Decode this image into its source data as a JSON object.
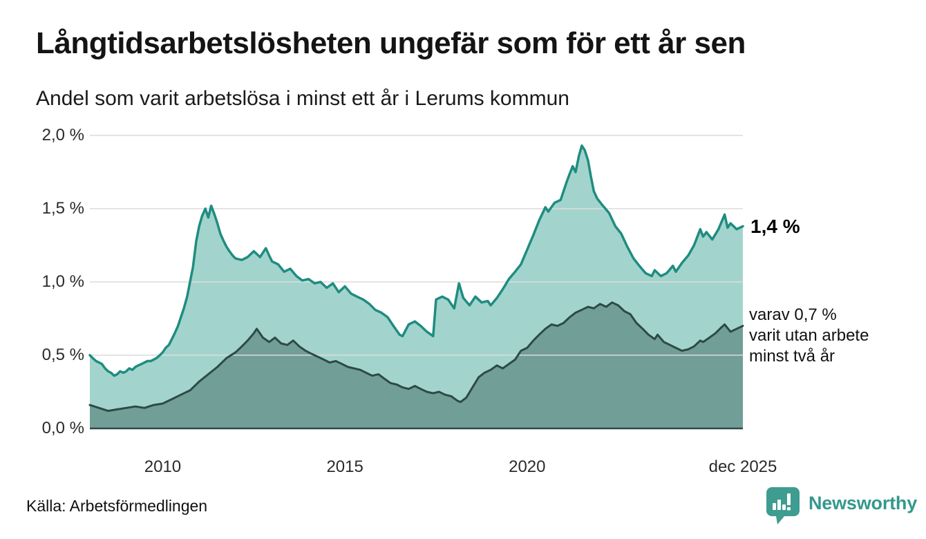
{
  "header": {
    "title": "Långtidsarbetslösheten ungefär som för ett år sen",
    "subtitle": "Andel som varit arbetslösa i minst ett år i Lerums kommun"
  },
  "annotations": {
    "latest_value": "1,4 %",
    "secondary_line1": "varav 0,7 %",
    "secondary_line2": "varit utan arbete",
    "secondary_line3": "minst två år"
  },
  "footer": {
    "source": "Källa: Arbetsförmedlingen",
    "brand": "Newsworthy"
  },
  "colors": {
    "primary_line": "#1f8c80",
    "primary_fill": "#a2d4cd",
    "secondary_line": "#2d4a45",
    "secondary_fill": "#719e97",
    "gridline": "#dcdcdc",
    "baseline": "#2d4a45",
    "brand_teal": "#3f9c90"
  },
  "chart_data": {
    "type": "area",
    "title": "Långtidsarbetslösheten ungefär som för ett år sen",
    "subtitle": "Andel som varit arbetslösa i minst ett år i Lerums kommun",
    "grid": true,
    "x_axis": {
      "start": 2008.0,
      "end": 2025.92,
      "ticks": [
        {
          "label": "2010",
          "year": 2010.0
        },
        {
          "label": "2015",
          "year": 2015.0
        },
        {
          "label": "2020",
          "year": 2020.0
        },
        {
          "label": "dec 2025",
          "year": 2025.92
        }
      ]
    },
    "y_axis": {
      "range": [
        0,
        2.0
      ],
      "unit": "%",
      "ticks": [
        {
          "label": "0,0 %",
          "value": 0.0
        },
        {
          "label": "0,5 %",
          "value": 0.5
        },
        {
          "label": "1,0 %",
          "value": 1.0
        },
        {
          "label": "1,5 %",
          "value": 1.5
        },
        {
          "label": "2,0 %",
          "value": 2.0
        }
      ]
    },
    "series": [
      {
        "name": "Andel arbetslösa minst ett år",
        "latest_label": "1,4 %",
        "latest_value": 1.38,
        "line_color": "#1f8c80",
        "fill_color": "#a2d4cd",
        "points": [
          [
            2008.0,
            0.5
          ],
          [
            2008.08,
            0.48
          ],
          [
            2008.17,
            0.46
          ],
          [
            2008.25,
            0.45
          ],
          [
            2008.33,
            0.44
          ],
          [
            2008.42,
            0.41
          ],
          [
            2008.5,
            0.39
          ],
          [
            2008.58,
            0.38
          ],
          [
            2008.67,
            0.36
          ],
          [
            2008.75,
            0.37
          ],
          [
            2008.83,
            0.39
          ],
          [
            2008.92,
            0.38
          ],
          [
            2009.0,
            0.39
          ],
          [
            2009.08,
            0.41
          ],
          [
            2009.17,
            0.4
          ],
          [
            2009.25,
            0.42
          ],
          [
            2009.33,
            0.43
          ],
          [
            2009.42,
            0.44
          ],
          [
            2009.5,
            0.45
          ],
          [
            2009.58,
            0.46
          ],
          [
            2009.67,
            0.46
          ],
          [
            2009.75,
            0.47
          ],
          [
            2009.83,
            0.48
          ],
          [
            2009.92,
            0.5
          ],
          [
            2010.0,
            0.52
          ],
          [
            2010.08,
            0.55
          ],
          [
            2010.17,
            0.57
          ],
          [
            2010.25,
            0.61
          ],
          [
            2010.33,
            0.65
          ],
          [
            2010.42,
            0.7
          ],
          [
            2010.5,
            0.76
          ],
          [
            2010.58,
            0.82
          ],
          [
            2010.67,
            0.9
          ],
          [
            2010.75,
            1.0
          ],
          [
            2010.83,
            1.1
          ],
          [
            2010.92,
            1.28
          ],
          [
            2011.0,
            1.38
          ],
          [
            2011.08,
            1.45
          ],
          [
            2011.17,
            1.5
          ],
          [
            2011.25,
            1.44
          ],
          [
            2011.33,
            1.52
          ],
          [
            2011.42,
            1.46
          ],
          [
            2011.5,
            1.4
          ],
          [
            2011.58,
            1.33
          ],
          [
            2011.67,
            1.28
          ],
          [
            2011.75,
            1.24
          ],
          [
            2011.83,
            1.21
          ],
          [
            2011.92,
            1.18
          ],
          [
            2012.0,
            1.16
          ],
          [
            2012.17,
            1.15
          ],
          [
            2012.33,
            1.17
          ],
          [
            2012.5,
            1.21
          ],
          [
            2012.67,
            1.17
          ],
          [
            2012.83,
            1.23
          ],
          [
            2012.92,
            1.18
          ],
          [
            2013.0,
            1.14
          ],
          [
            2013.17,
            1.12
          ],
          [
            2013.33,
            1.07
          ],
          [
            2013.5,
            1.09
          ],
          [
            2013.67,
            1.04
          ],
          [
            2013.83,
            1.01
          ],
          [
            2014.0,
            1.02
          ],
          [
            2014.17,
            0.99
          ],
          [
            2014.33,
            1.0
          ],
          [
            2014.5,
            0.96
          ],
          [
            2014.67,
            0.99
          ],
          [
            2014.83,
            0.93
          ],
          [
            2015.0,
            0.97
          ],
          [
            2015.17,
            0.92
          ],
          [
            2015.33,
            0.9
          ],
          [
            2015.5,
            0.88
          ],
          [
            2015.67,
            0.85
          ],
          [
            2015.83,
            0.81
          ],
          [
            2016.0,
            0.79
          ],
          [
            2016.17,
            0.76
          ],
          [
            2016.33,
            0.7
          ],
          [
            2016.5,
            0.64
          ],
          [
            2016.58,
            0.63
          ],
          [
            2016.75,
            0.71
          ],
          [
            2016.92,
            0.73
          ],
          [
            2017.08,
            0.7
          ],
          [
            2017.25,
            0.66
          ],
          [
            2017.42,
            0.63
          ],
          [
            2017.5,
            0.88
          ],
          [
            2017.67,
            0.9
          ],
          [
            2017.83,
            0.88
          ],
          [
            2018.0,
            0.82
          ],
          [
            2018.13,
            0.99
          ],
          [
            2018.25,
            0.89
          ],
          [
            2018.42,
            0.84
          ],
          [
            2018.58,
            0.9
          ],
          [
            2018.75,
            0.86
          ],
          [
            2018.92,
            0.87
          ],
          [
            2019.0,
            0.84
          ],
          [
            2019.17,
            0.89
          ],
          [
            2019.33,
            0.95
          ],
          [
            2019.5,
            1.02
          ],
          [
            2019.67,
            1.07
          ],
          [
            2019.83,
            1.12
          ],
          [
            2020.0,
            1.22
          ],
          [
            2020.17,
            1.32
          ],
          [
            2020.33,
            1.42
          ],
          [
            2020.5,
            1.51
          ],
          [
            2020.58,
            1.48
          ],
          [
            2020.75,
            1.54
          ],
          [
            2020.92,
            1.56
          ],
          [
            2021.08,
            1.68
          ],
          [
            2021.17,
            1.74
          ],
          [
            2021.25,
            1.79
          ],
          [
            2021.33,
            1.75
          ],
          [
            2021.42,
            1.86
          ],
          [
            2021.5,
            1.93
          ],
          [
            2021.58,
            1.9
          ],
          [
            2021.67,
            1.83
          ],
          [
            2021.75,
            1.72
          ],
          [
            2021.83,
            1.62
          ],
          [
            2021.92,
            1.57
          ],
          [
            2022.08,
            1.52
          ],
          [
            2022.25,
            1.47
          ],
          [
            2022.42,
            1.38
          ],
          [
            2022.58,
            1.33
          ],
          [
            2022.75,
            1.24
          ],
          [
            2022.92,
            1.16
          ],
          [
            2023.08,
            1.11
          ],
          [
            2023.25,
            1.06
          ],
          [
            2023.42,
            1.04
          ],
          [
            2023.5,
            1.08
          ],
          [
            2023.67,
            1.04
          ],
          [
            2023.83,
            1.06
          ],
          [
            2024.0,
            1.11
          ],
          [
            2024.08,
            1.07
          ],
          [
            2024.25,
            1.13
          ],
          [
            2024.42,
            1.18
          ],
          [
            2024.58,
            1.25
          ],
          [
            2024.75,
            1.36
          ],
          [
            2024.83,
            1.31
          ],
          [
            2024.92,
            1.34
          ],
          [
            2025.08,
            1.29
          ],
          [
            2025.25,
            1.36
          ],
          [
            2025.42,
            1.46
          ],
          [
            2025.5,
            1.37
          ],
          [
            2025.58,
            1.4
          ],
          [
            2025.75,
            1.36
          ],
          [
            2025.92,
            1.38
          ]
        ]
      },
      {
        "name": "varav utan arbete minst två år",
        "latest_label": "0,7 %",
        "latest_value": 0.7,
        "line_color": "#2d4a45",
        "fill_color": "#719e97",
        "points": [
          [
            2008.0,
            0.16
          ],
          [
            2008.25,
            0.14
          ],
          [
            2008.5,
            0.12
          ],
          [
            2008.75,
            0.13
          ],
          [
            2009.0,
            0.14
          ],
          [
            2009.25,
            0.15
          ],
          [
            2009.5,
            0.14
          ],
          [
            2009.75,
            0.16
          ],
          [
            2010.0,
            0.17
          ],
          [
            2010.25,
            0.2
          ],
          [
            2010.5,
            0.23
          ],
          [
            2010.75,
            0.26
          ],
          [
            2011.0,
            0.32
          ],
          [
            2011.25,
            0.37
          ],
          [
            2011.5,
            0.42
          ],
          [
            2011.75,
            0.48
          ],
          [
            2012.0,
            0.52
          ],
          [
            2012.17,
            0.56
          ],
          [
            2012.33,
            0.6
          ],
          [
            2012.5,
            0.65
          ],
          [
            2012.58,
            0.68
          ],
          [
            2012.75,
            0.62
          ],
          [
            2012.92,
            0.59
          ],
          [
            2013.08,
            0.62
          ],
          [
            2013.25,
            0.58
          ],
          [
            2013.42,
            0.57
          ],
          [
            2013.58,
            0.6
          ],
          [
            2013.75,
            0.56
          ],
          [
            2013.92,
            0.53
          ],
          [
            2014.08,
            0.51
          ],
          [
            2014.25,
            0.49
          ],
          [
            2014.42,
            0.47
          ],
          [
            2014.58,
            0.45
          ],
          [
            2014.75,
            0.46
          ],
          [
            2014.92,
            0.44
          ],
          [
            2015.08,
            0.42
          ],
          [
            2015.25,
            0.41
          ],
          [
            2015.42,
            0.4
          ],
          [
            2015.58,
            0.38
          ],
          [
            2015.75,
            0.36
          ],
          [
            2015.92,
            0.37
          ],
          [
            2016.08,
            0.34
          ],
          [
            2016.25,
            0.31
          ],
          [
            2016.42,
            0.3
          ],
          [
            2016.58,
            0.28
          ],
          [
            2016.75,
            0.27
          ],
          [
            2016.92,
            0.29
          ],
          [
            2017.08,
            0.27
          ],
          [
            2017.25,
            0.25
          ],
          [
            2017.42,
            0.24
          ],
          [
            2017.58,
            0.25
          ],
          [
            2017.75,
            0.23
          ],
          [
            2017.92,
            0.22
          ],
          [
            2018.08,
            0.19
          ],
          [
            2018.17,
            0.18
          ],
          [
            2018.33,
            0.21
          ],
          [
            2018.5,
            0.28
          ],
          [
            2018.67,
            0.35
          ],
          [
            2018.83,
            0.38
          ],
          [
            2019.0,
            0.4
          ],
          [
            2019.17,
            0.43
          ],
          [
            2019.33,
            0.41
          ],
          [
            2019.5,
            0.44
          ],
          [
            2019.67,
            0.47
          ],
          [
            2019.83,
            0.53
          ],
          [
            2020.0,
            0.55
          ],
          [
            2020.17,
            0.6
          ],
          [
            2020.33,
            0.64
          ],
          [
            2020.5,
            0.68
          ],
          [
            2020.67,
            0.71
          ],
          [
            2020.83,
            0.7
          ],
          [
            2021.0,
            0.72
          ],
          [
            2021.17,
            0.76
          ],
          [
            2021.33,
            0.79
          ],
          [
            2021.5,
            0.81
          ],
          [
            2021.67,
            0.83
          ],
          [
            2021.83,
            0.82
          ],
          [
            2022.0,
            0.85
          ],
          [
            2022.17,
            0.83
          ],
          [
            2022.33,
            0.86
          ],
          [
            2022.5,
            0.84
          ],
          [
            2022.67,
            0.8
          ],
          [
            2022.83,
            0.78
          ],
          [
            2023.0,
            0.72
          ],
          [
            2023.17,
            0.68
          ],
          [
            2023.33,
            0.64
          ],
          [
            2023.5,
            0.61
          ],
          [
            2023.58,
            0.64
          ],
          [
            2023.75,
            0.59
          ],
          [
            2023.92,
            0.57
          ],
          [
            2024.08,
            0.55
          ],
          [
            2024.25,
            0.53
          ],
          [
            2024.42,
            0.54
          ],
          [
            2024.58,
            0.56
          ],
          [
            2024.75,
            0.6
          ],
          [
            2024.83,
            0.59
          ],
          [
            2025.0,
            0.62
          ],
          [
            2025.17,
            0.65
          ],
          [
            2025.33,
            0.69
          ],
          [
            2025.42,
            0.71
          ],
          [
            2025.58,
            0.66
          ],
          [
            2025.75,
            0.68
          ],
          [
            2025.92,
            0.7
          ]
        ]
      }
    ]
  }
}
